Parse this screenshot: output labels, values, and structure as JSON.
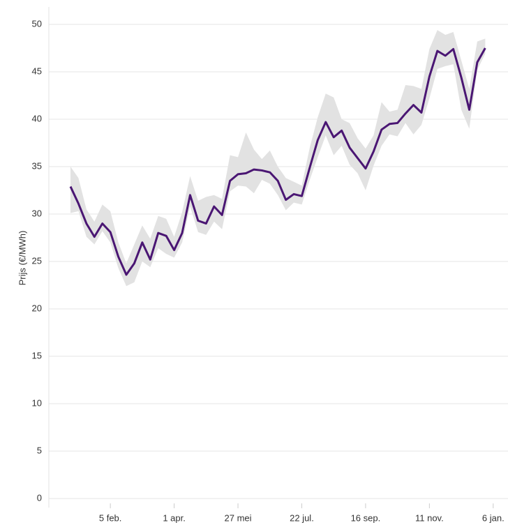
{
  "chart_data": {
    "type": "line",
    "y_label": "Prijs (€/MWh)",
    "categories": [
      null,
      null,
      null,
      null,
      null,
      "5 feb.",
      null,
      null,
      null,
      null,
      null,
      null,
      null,
      "1 apr.",
      null,
      null,
      null,
      null,
      null,
      null,
      null,
      "27 mei",
      null,
      null,
      null,
      null,
      null,
      null,
      null,
      "22 jul.",
      null,
      null,
      null,
      null,
      null,
      null,
      null,
      "16 sep.",
      null,
      null,
      null,
      null,
      null,
      null,
      null,
      "11 nov.",
      null,
      null,
      null,
      null,
      null,
      null,
      null,
      "6 jan."
    ],
    "values": [
      32.9,
      31.1,
      29,
      27.6,
      29,
      28.1,
      25.5,
      23.6,
      24.8,
      27,
      25.2,
      28,
      27.7,
      26.2,
      28,
      32,
      29.3,
      29,
      30.8,
      29.9,
      33.5,
      34.2,
      34.3,
      34.7,
      34.6,
      34.4,
      33.5,
      31.5,
      32.1,
      31.9,
      34.9,
      37.8,
      39.7,
      38.1,
      38.8,
      37,
      35.9,
      34.8,
      36.6,
      38.9,
      39.5,
      39.6,
      40.6,
      41.5,
      40.7,
      44.5,
      47.2,
      46.7,
      47.4,
      44.4,
      41,
      46,
      47.5,
      null
    ],
    "upper": [
      35,
      33.8,
      30.5,
      29.2,
      31,
      30.3,
      27,
      24.8,
      26.8,
      28.8,
      27.4,
      29.8,
      29.5,
      27.6,
      30.2,
      34,
      31.4,
      31.8,
      32,
      31.6,
      36.2,
      36,
      38.6,
      36.8,
      35.8,
      36.7,
      35,
      33.8,
      33.4,
      33,
      37,
      40.2,
      42.7,
      42.3,
      40,
      39.6,
      38,
      36.9,
      38.3,
      41.8,
      40.8,
      41,
      43.6,
      43.5,
      43.2,
      47.4,
      49.4,
      48.9,
      49.2,
      46.2,
      43.2,
      48.2,
      48.5,
      null
    ],
    "lower": [
      30.1,
      30.3,
      27.6,
      26.8,
      28.2,
      27,
      24.3,
      22.4,
      22.8,
      25,
      24.4,
      26.4,
      25.8,
      25.4,
      27,
      30.8,
      28.1,
      27.8,
      29.2,
      28.4,
      32.4,
      33,
      32.9,
      32.2,
      33.6,
      33.2,
      32,
      30.4,
      31.2,
      31,
      33.6,
      36,
      38.3,
      36.2,
      37.2,
      35.2,
      34.3,
      32.5,
      35.1,
      37.2,
      38.4,
      38.2,
      39.6,
      38.4,
      39.4,
      42.2,
      45.3,
      45.6,
      45.8,
      41,
      39,
      45.2,
      46.9,
      null
    ],
    "color": "#4a1673",
    "band_color": "#e2e2e2",
    "ylim": [
      0,
      50
    ],
    "yticks": [
      0,
      5,
      10,
      15,
      20,
      25,
      30,
      35,
      40,
      45,
      50
    ],
    "grid": true
  }
}
